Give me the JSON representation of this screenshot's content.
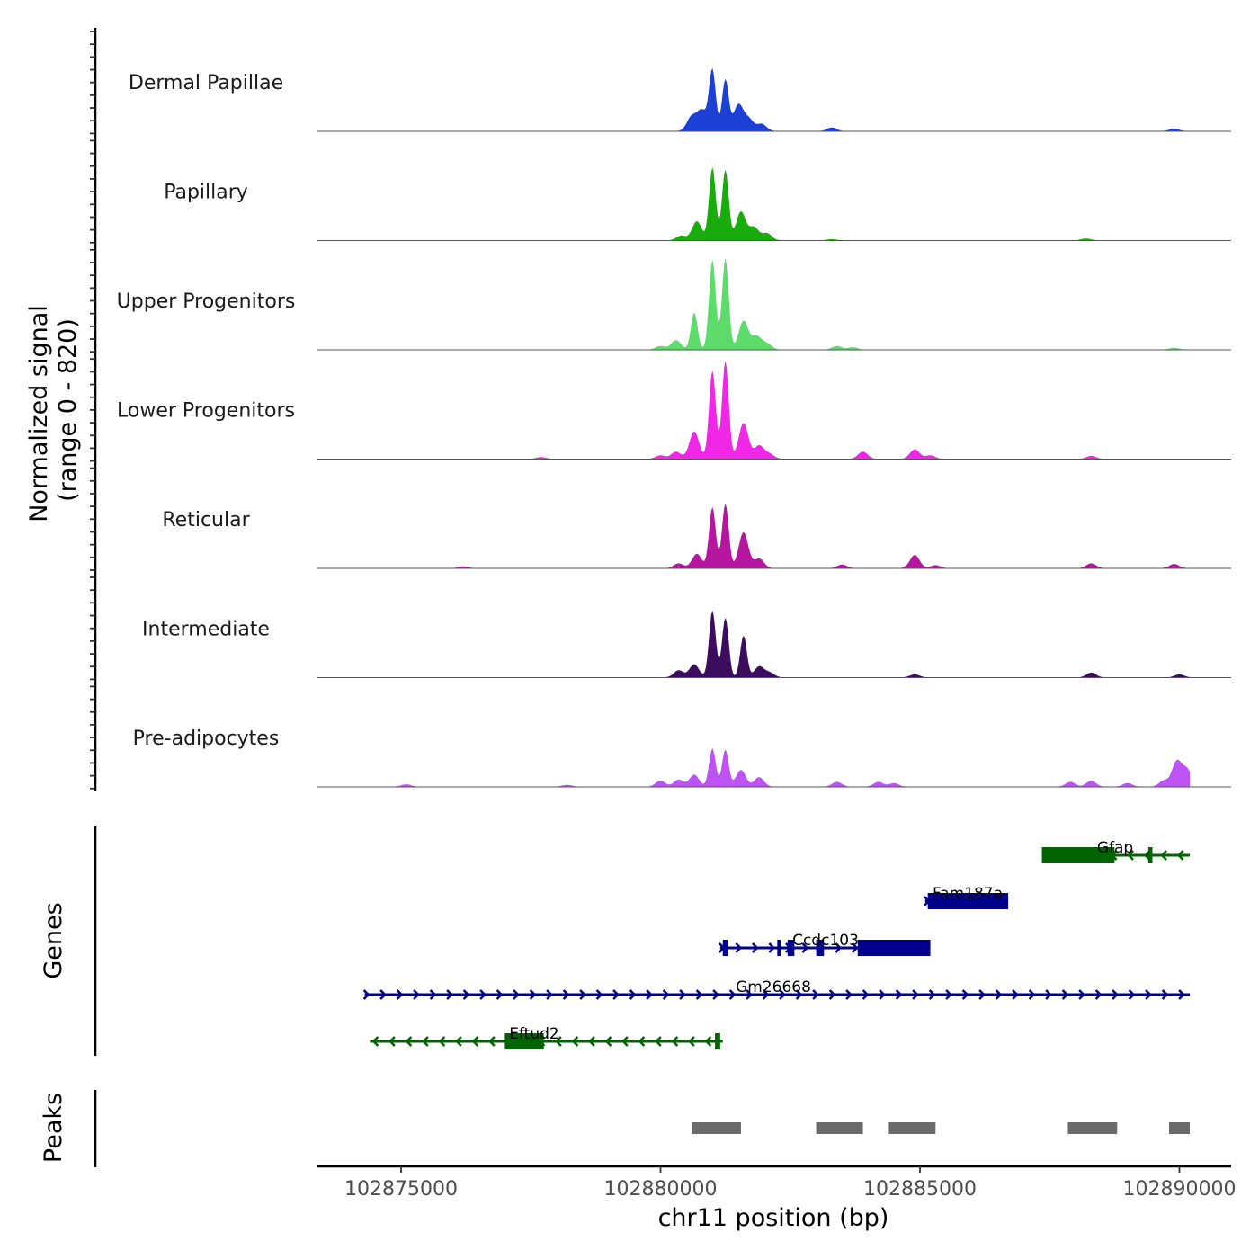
{
  "chart_data": {
    "type": "area",
    "title": "",
    "chromosome": "chr11",
    "xlabel": "chr11 position (bp)",
    "ylabel_line1": "Normalized signal",
    "ylabel_line2": "(range 0 - 820)",
    "ylim": [
      0,
      820
    ],
    "xlim": [
      102873600,
      102891200
    ],
    "x_ticks": [
      102875000,
      102880000,
      102885000,
      102890000
    ],
    "x_tick_labels": [
      "102875000",
      "102880000",
      "102885000",
      "102890000"
    ],
    "tracks": [
      {
        "name": "Dermal Papillae",
        "color": "#1c3fd6",
        "peaks": [
          [
            102880600,
            120
          ],
          [
            102880800,
            170
          ],
          [
            102881000,
            510
          ],
          [
            102881250,
            430
          ],
          [
            102881500,
            220
          ],
          [
            102881700,
            100
          ],
          [
            102881950,
            60
          ],
          [
            102883300,
            30
          ],
          [
            102889900,
            20
          ]
        ]
      },
      {
        "name": "Papillary",
        "color": "#1aab0c",
        "peaks": [
          [
            102880400,
            40
          ],
          [
            102880700,
            160
          ],
          [
            102881000,
            610
          ],
          [
            102881250,
            590
          ],
          [
            102881550,
            240
          ],
          [
            102881800,
            110
          ],
          [
            102882050,
            60
          ],
          [
            102883300,
            10
          ],
          [
            102888200,
            15
          ]
        ]
      },
      {
        "name": "Upper Progenitors",
        "color": "#5ddc6c",
        "peaks": [
          [
            102880000,
            30
          ],
          [
            102880300,
            80
          ],
          [
            102880650,
            310
          ],
          [
            102881000,
            750
          ],
          [
            102881250,
            760
          ],
          [
            102881600,
            240
          ],
          [
            102881850,
            110
          ],
          [
            102882050,
            50
          ],
          [
            102883400,
            30
          ],
          [
            102883700,
            20
          ],
          [
            102889900,
            15
          ]
        ]
      },
      {
        "name": "Lower Progenitors",
        "color": "#f027e6",
        "peaks": [
          [
            102877700,
            15
          ],
          [
            102880000,
            30
          ],
          [
            102880300,
            60
          ],
          [
            102880650,
            230
          ],
          [
            102881000,
            740
          ],
          [
            102881250,
            820
          ],
          [
            102881600,
            300
          ],
          [
            102881900,
            110
          ],
          [
            102882100,
            40
          ],
          [
            102883900,
            60
          ],
          [
            102884900,
            80
          ],
          [
            102885200,
            30
          ],
          [
            102888300,
            25
          ]
        ]
      },
      {
        "name": "Reticular",
        "color": "#b5159f",
        "peaks": [
          [
            102876200,
            15
          ],
          [
            102880350,
            40
          ],
          [
            102880700,
            120
          ],
          [
            102881000,
            510
          ],
          [
            102881250,
            540
          ],
          [
            102881600,
            300
          ],
          [
            102881900,
            80
          ],
          [
            102883500,
            30
          ],
          [
            102884900,
            110
          ],
          [
            102885300,
            25
          ],
          [
            102888300,
            40
          ],
          [
            102889900,
            35
          ]
        ]
      },
      {
        "name": "Intermediate",
        "color": "#3b0d5c",
        "peaks": [
          [
            102880350,
            60
          ],
          [
            102880650,
            110
          ],
          [
            102881000,
            560
          ],
          [
            102881250,
            500
          ],
          [
            102881600,
            350
          ],
          [
            102881900,
            90
          ],
          [
            102882100,
            40
          ],
          [
            102884900,
            25
          ],
          [
            102888300,
            40
          ],
          [
            102890000,
            25
          ]
        ]
      },
      {
        "name": "Pre-adipocytes",
        "color": "#bd53f2",
        "peaks": [
          [
            102875100,
            20
          ],
          [
            102878200,
            15
          ],
          [
            102880000,
            50
          ],
          [
            102880350,
            60
          ],
          [
            102880650,
            100
          ],
          [
            102881000,
            320
          ],
          [
            102881250,
            310
          ],
          [
            102881550,
            140
          ],
          [
            102881900,
            80
          ],
          [
            102883400,
            40
          ],
          [
            102884200,
            40
          ],
          [
            102884500,
            30
          ],
          [
            102887900,
            40
          ],
          [
            102888300,
            50
          ],
          [
            102889000,
            30
          ],
          [
            102889700,
            50
          ],
          [
            102889950,
            210
          ],
          [
            102890150,
            140
          ]
        ]
      }
    ],
    "genes_label": "Genes",
    "genes": [
      {
        "name": "Gfap",
        "strand": "-",
        "color": "#006400",
        "start": 102887350,
        "end": 102890200,
        "exons": [
          [
            102887350,
            102888750
          ],
          [
            102889400,
            102889480
          ]
        ],
        "row": 0
      },
      {
        "name": "Fam187a",
        "strand": "+",
        "color": "#00008b",
        "start": 102885100,
        "end": 102886700,
        "exons": [
          [
            102885150,
            102886700
          ]
        ],
        "row": 1
      },
      {
        "name": "Ccdc103",
        "strand": "+",
        "color": "#00008b",
        "start": 102881150,
        "end": 102885200,
        "exons": [
          [
            102881200,
            102881300
          ],
          [
            102882250,
            102882320
          ],
          [
            102882450,
            102882580
          ],
          [
            102883000,
            102883150
          ],
          [
            102883800,
            102885200
          ]
        ],
        "row": 2
      },
      {
        "name": "Gm26668",
        "strand": "+",
        "color": "#00008b",
        "start": 102874300,
        "end": 102890200,
        "exons": [],
        "row": 3
      },
      {
        "name": "Eftud2",
        "strand": "-",
        "color": "#006400",
        "start": 102874400,
        "end": 102881200,
        "exons": [
          [
            102877000,
            102877750
          ],
          [
            102881050,
            102881150
          ]
        ],
        "row": 4
      }
    ],
    "peaks_label": "Peaks",
    "peak_regions": [
      [
        102880600,
        102881550
      ],
      [
        102883000,
        102883900
      ],
      [
        102884400,
        102885300
      ],
      [
        102887850,
        102888800
      ],
      [
        102889800,
        102890200
      ]
    ],
    "peak_color": "#6b6b6b"
  }
}
